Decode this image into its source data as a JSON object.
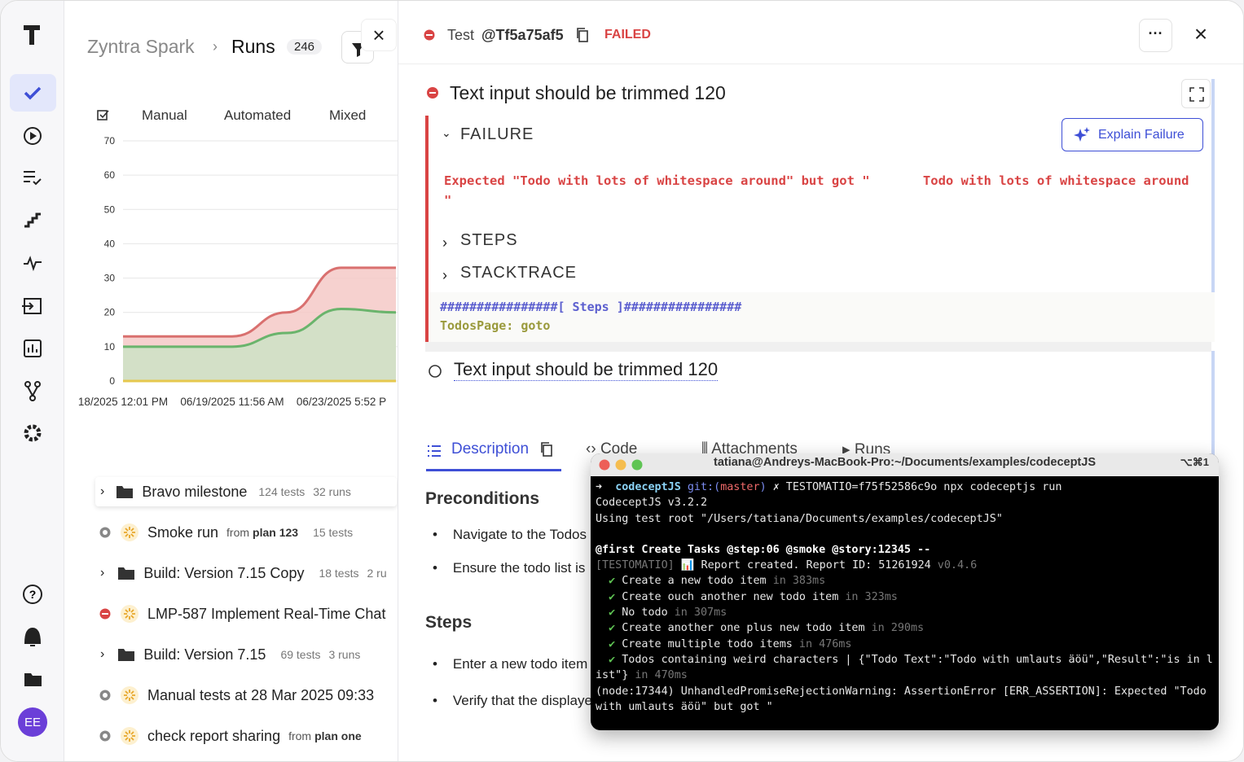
{
  "sidebar": {
    "avatar": "EE"
  },
  "header": {
    "project": "Zyntra Spark",
    "page": "Runs",
    "count": "246"
  },
  "tabs": [
    "Manual",
    "Automated",
    "Mixed"
  ],
  "chart": {
    "type": "area",
    "categories": [
      "18/2025 12:01 PM",
      null,
      "06/19/2025 11:56 AM",
      null,
      "06/23/2025 5:52 P",
      null
    ],
    "series": [
      {
        "color": "#d9706f",
        "fill": "#f4c9c7",
        "values": [
          13,
          13,
          13,
          20,
          33,
          33
        ]
      },
      {
        "color": "#6ab46c",
        "fill": "#cde3c6",
        "values": [
          10,
          10,
          10,
          14,
          21,
          20
        ]
      },
      {
        "color": "#e6c84e",
        "fill": "#f5e6a8",
        "values": [
          0,
          0,
          0,
          0,
          0,
          0
        ]
      }
    ],
    "ylim": [
      0,
      70
    ],
    "yticks": [
      0,
      10,
      20,
      30,
      40,
      50,
      60,
      70
    ],
    "grid": true
  },
  "runs": [
    {
      "name": "Bravo milestone",
      "tests": "124 tests",
      "runs": "32 runs"
    },
    {
      "name": "Smoke run",
      "from": "from",
      "plan": "plan 123",
      "tests": "15 tests"
    },
    {
      "name": "Build: Version 7.15 Copy",
      "tests": "18 tests",
      "runs": "2 ru"
    },
    {
      "name": "LMP-587 Implement Real-Time Chat"
    },
    {
      "name": "Build: Version 7.15",
      "tests": "69 tests",
      "runs": "3 runs"
    },
    {
      "name": "Manual tests at 28 Mar 2025 09:33"
    },
    {
      "name": "check report sharing",
      "from": "from",
      "plan": "plan one"
    }
  ],
  "test": {
    "label": "Test",
    "id": "@Tf5a75af5",
    "status": "FAILED",
    "title": "Text input should be trimmed 120",
    "failure": "FAILURE",
    "explain": "Explain Failure",
    "error": "Expected \"Todo with lots of whitespace around\" but got \"       Todo with lots of whitespace around\n\"",
    "steps": "STEPS",
    "stacktrace": "STACKTRACE",
    "code": [
      "################[ Steps ]################",
      "TodosPage: goto"
    ],
    "second_title": "Text input should be trimmed 120",
    "detail_tabs": [
      "Description",
      "Code",
      "Attachments",
      "Runs"
    ],
    "preconditions": "Preconditions",
    "precondition_items": [
      "Navigate to the Todos",
      "Ensure the todo list is"
    ],
    "steps_heading": "Steps",
    "step_items": [
      "Enter a new todo item",
      "Verify that the displaye"
    ]
  },
  "terminal": {
    "title": "tatiana@Andreys-MacBook-Pro:~/Documents/examples/codeceptJS",
    "shortcut": "⌥⌘1",
    "lines": [
      [
        "➜",
        "codeceptJS",
        "git:(",
        "master",
        ")",
        "✗ TESTOMATIO=f75f52586c9o npx codeceptjs run"
      ],
      [
        "CodeceptJS v3.2.2"
      ],
      [
        "Using test root \"/Users/tatiana/Documents/examples/codeceptJS\""
      ],
      [
        "@first Create Tasks @step:06 @smoke @story:12345 --"
      ],
      [
        "[TESTOMATIO]",
        "📊 Report created. Report ID: 51261924",
        "v0.4.6"
      ],
      [
        "✔",
        "Create a new todo item",
        "in 383ms"
      ],
      [
        "✔",
        "Create ouch another new todo item",
        "in 323ms"
      ],
      [
        "✔",
        "No todo",
        "in 307ms"
      ],
      [
        "✔",
        "Create another one plus new todo item",
        "in 290ms"
      ],
      [
        "✔",
        "Create multiple todo items",
        "in 476ms"
      ],
      [
        "✔",
        "Todos containing weird characters | {\"Todo Text\":\"Todo with umlauts äöü\",\"Result\":\"is in list\"}",
        "in 470ms"
      ],
      [
        "(node:17344) UnhandledPromiseRejectionWarning: AssertionError [ERR_ASSERTION]: Expected \"Todo with umlauts äöü\" but got \""
      ]
    ]
  }
}
